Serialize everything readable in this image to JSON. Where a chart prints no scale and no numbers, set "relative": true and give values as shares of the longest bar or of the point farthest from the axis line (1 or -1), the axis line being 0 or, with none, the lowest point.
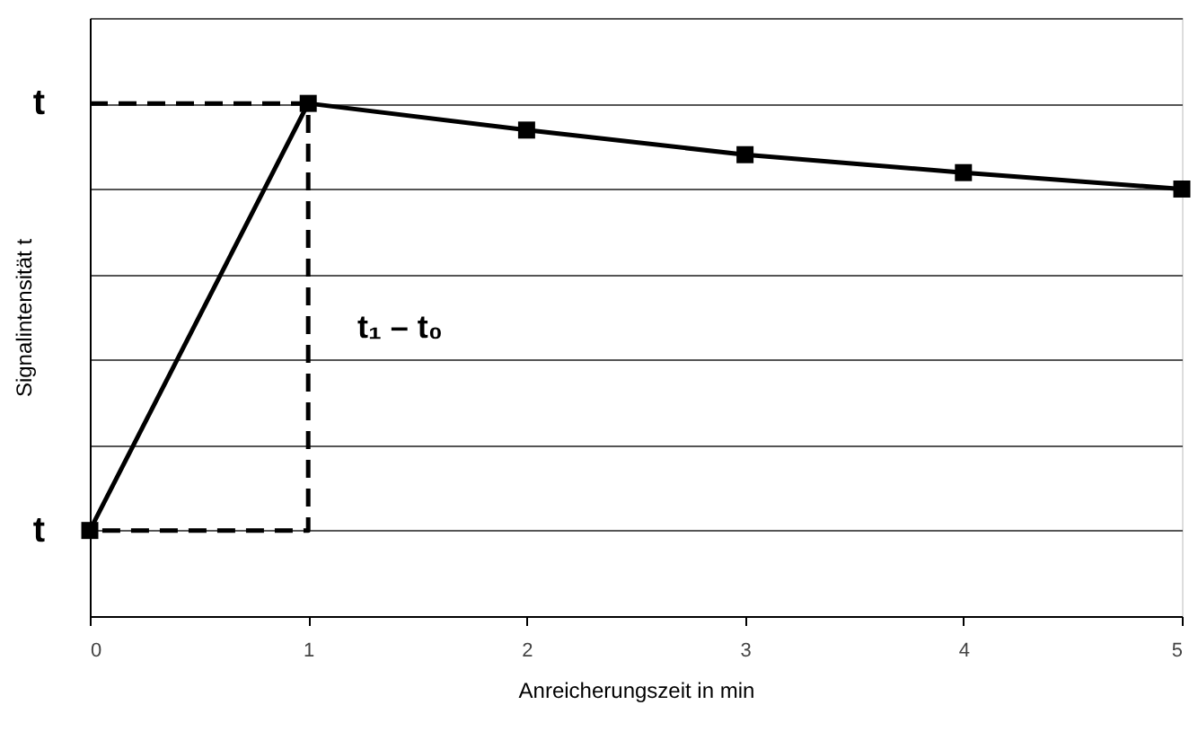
{
  "chart_data": {
    "type": "line",
    "xlabel": "Anreicherungszeit in min",
    "ylabel": "Signalintensität t",
    "xlim": [
      0,
      5
    ],
    "xticks": [
      0,
      1,
      2,
      3,
      4,
      5
    ],
    "relative": true,
    "grid": "y",
    "series": [
      {
        "color": "#000000",
        "marker": "square",
        "line_style": "solid",
        "x": [
          0,
          1,
          2,
          3,
          4,
          5
        ],
        "values": [
          0.167,
          1,
          0.948,
          0.9,
          0.865,
          0.833
        ]
      },
      {
        "color": "#000000",
        "marker": "none",
        "line_style": "dashed",
        "x": [
          0,
          1,
          1,
          0
        ],
        "values": [
          1,
          1,
          0.167,
          0.167
        ]
      }
    ],
    "annotations": [
      {
        "text": "t",
        "x": 0,
        "y": 1
      },
      {
        "text": "t",
        "x": 0,
        "y": 0.167
      },
      "t₁ – t₀"
    ]
  }
}
